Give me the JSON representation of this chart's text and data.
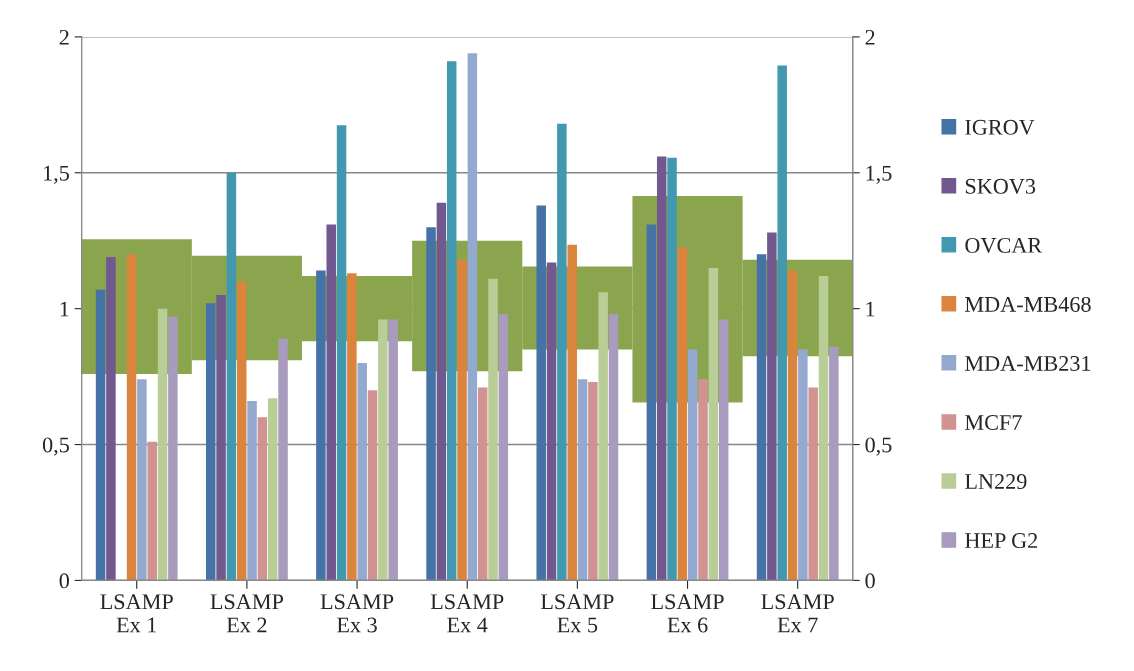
{
  "chart_data": {
    "type": "bar",
    "categories": [
      "LSAMP\nEx 1",
      "LSAMP\nEx 2",
      "LSAMP\nEx 3",
      "LSAMP\nEx 4",
      "LSAMP\nEx 5",
      "LSAMP\nEx 6",
      "LSAMP\nEx 7"
    ],
    "series": [
      {
        "type": "bar",
        "color": "#8aa54e",
        "base": [
          0.76,
          0.81,
          0.88,
          0.77,
          0.85,
          0.655,
          0.825
        ],
        "values": [
          0.495,
          0.385,
          0.24,
          0.48,
          0.305,
          0.76,
          0.355
        ]
      },
      {
        "name": "IGROV",
        "color": "#4572a7",
        "values": [
          1.07,
          1.02,
          1.14,
          1.3,
          1.38,
          1.31,
          1.2
        ]
      },
      {
        "name": "SKOV3",
        "color": "#71588f",
        "values": [
          1.19,
          1.05,
          1.31,
          1.39,
          1.17,
          1.56,
          1.28
        ]
      },
      {
        "name": "OVCAR",
        "color": "#4198af",
        "values": [
          0,
          1.5,
          1.675,
          1.91,
          1.68,
          1.555,
          1.895
        ]
      },
      {
        "name": "MDA-MB468",
        "color": "#db843d",
        "values": [
          1.2,
          1.1,
          1.13,
          1.18,
          1.235,
          1.225,
          1.14
        ]
      },
      {
        "name": "MDA-MB231",
        "color": "#93a9cf",
        "values": [
          0.74,
          0.66,
          0.8,
          1.94,
          0.74,
          0.85,
          0.85
        ]
      },
      {
        "name": "MCF7",
        "color": "#d19392",
        "values": [
          0.51,
          0.6,
          0.7,
          0.71,
          0.73,
          0.74,
          0.71
        ]
      },
      {
        "name": "LN229",
        "color": "#b9cd96",
        "values": [
          1.0,
          0.67,
          0.96,
          1.11,
          1.06,
          1.15,
          1.12
        ]
      },
      {
        "name": "HEP G2",
        "color": "#a99bbd",
        "values": [
          0.97,
          0.89,
          0.96,
          0.98,
          0.98,
          0.96,
          0.86
        ]
      }
    ],
    "ylim": [
      0,
      2
    ],
    "yticks": [
      0,
      {
        "value": 0.5,
        "label": "0,5"
      },
      1,
      {
        "value": 1.5,
        "label": "1,5"
      },
      2
    ],
    "y2lim": [
      0,
      2
    ],
    "y2ticks": [
      0,
      {
        "value": 0.5,
        "label": "0,5"
      },
      1,
      {
        "value": 1.5,
        "label": "1,5"
      },
      2
    ],
    "grid": "y",
    "legend": "right"
  }
}
